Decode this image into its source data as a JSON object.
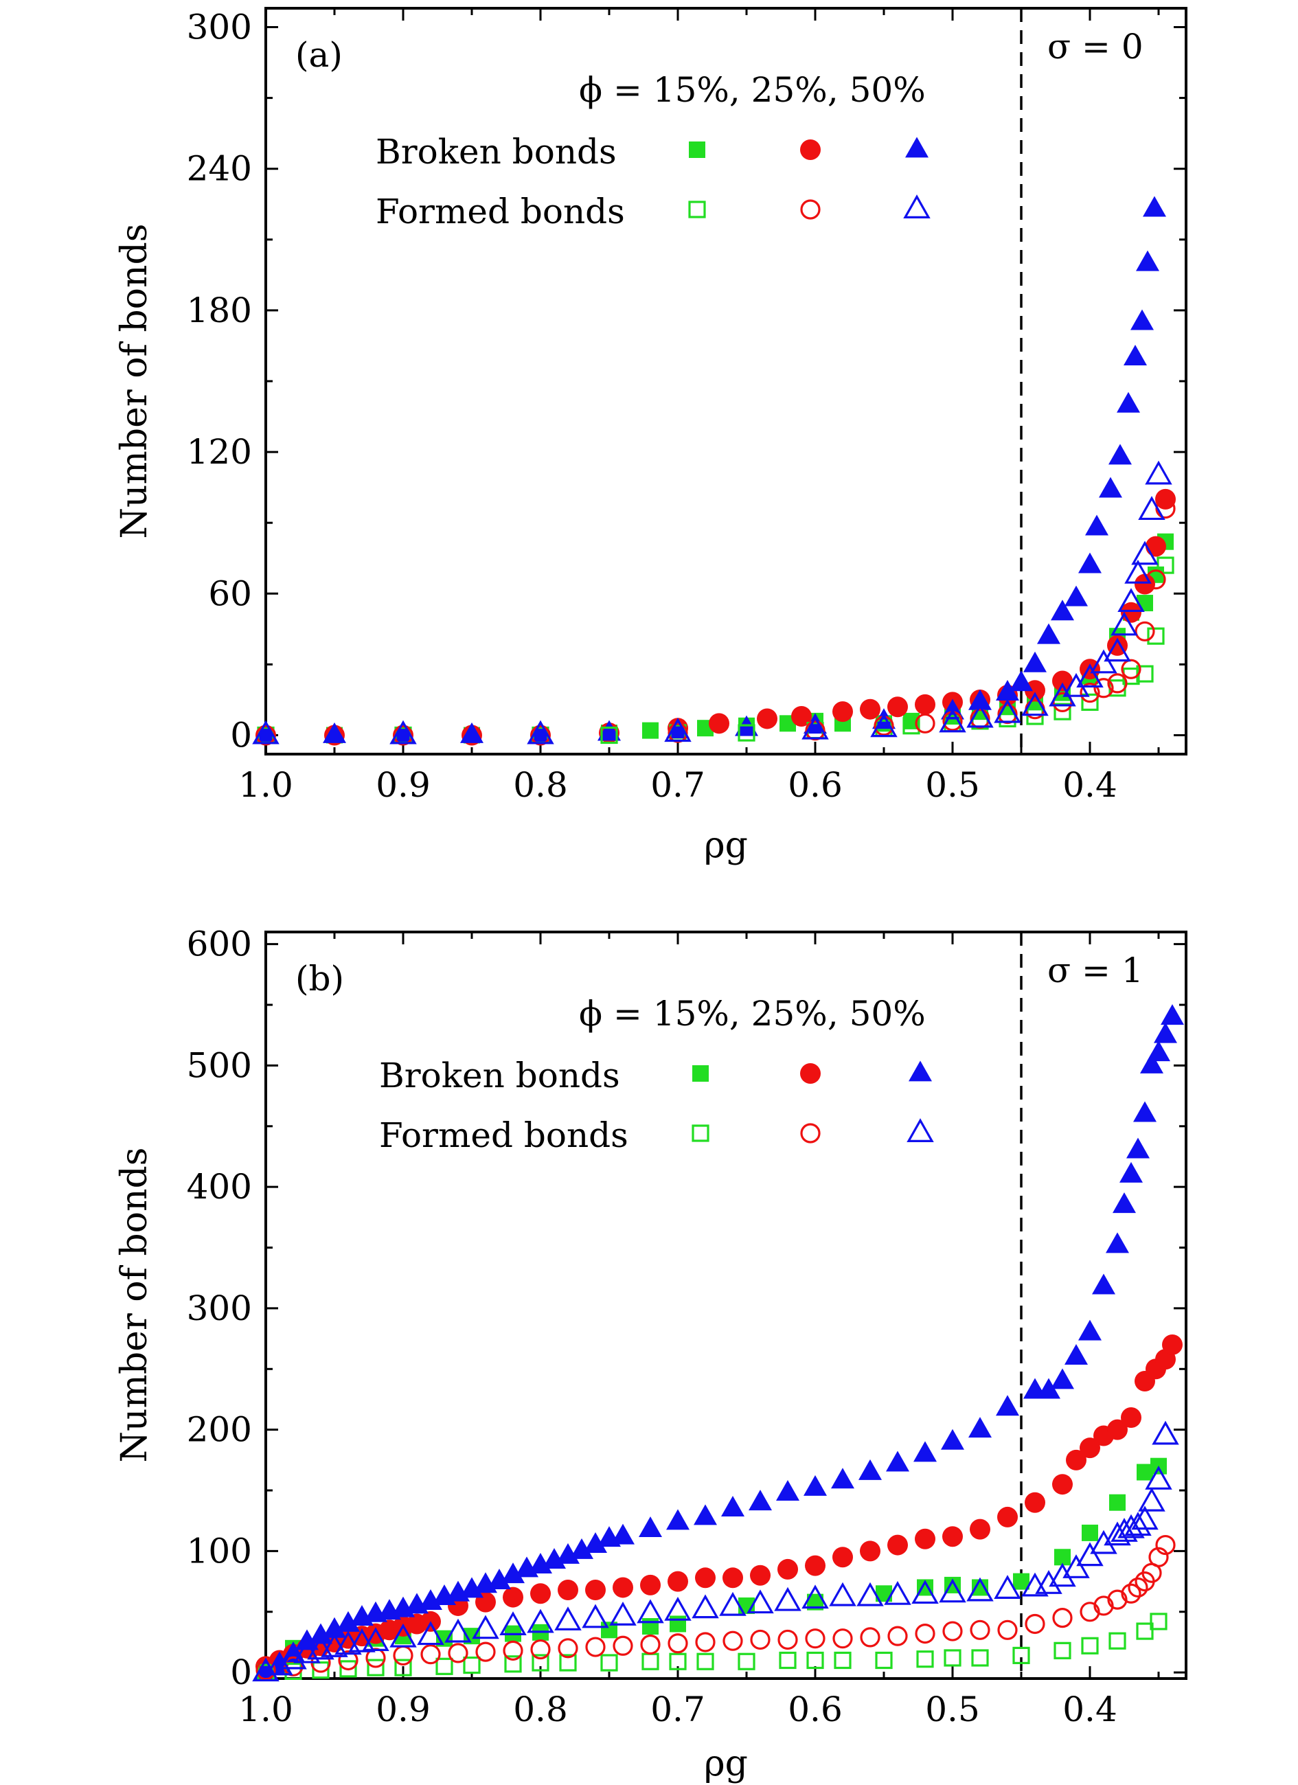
{
  "colors": {
    "phi15": "#22dd22",
    "phi25": "#ee1111",
    "phi50": "#1010ee",
    "axis": "#000000"
  },
  "chart_data": [
    {
      "type": "scatter",
      "panel_label": "(a)",
      "sigma_label": "σ = 0",
      "phi_label": "ϕ = 15%, 25%, 50%",
      "xlabel": "ρg",
      "ylabel": "Number of bonds",
      "xlim": [
        1.0,
        0.33
      ],
      "ylim": [
        -8,
        308
      ],
      "xticks": [
        1.0,
        0.9,
        0.8,
        0.7,
        0.6,
        0.5,
        0.4
      ],
      "xtick_labels": [
        "1.0",
        "0.9",
        "0.8",
        "0.7",
        "0.6",
        "0.5",
        "0.4"
      ],
      "yticks": [
        0,
        60,
        120,
        180,
        240,
        300
      ],
      "ytick_labels": [
        "0",
        "60",
        "120",
        "180",
        "240",
        "300"
      ],
      "vline": 0.45,
      "legend_rows": [
        "Broken bonds",
        "Formed bonds"
      ],
      "series": [
        {
          "phi": "15%",
          "kind": "Broken bonds",
          "marker": "square",
          "filled": true,
          "color_key": "phi15",
          "x": [
            1.0,
            0.95,
            0.9,
            0.85,
            0.8,
            0.75,
            0.72,
            0.7,
            0.68,
            0.65,
            0.62,
            0.6,
            0.58,
            0.55,
            0.53,
            0.5,
            0.48,
            0.46,
            0.44,
            0.42,
            0.4,
            0.38,
            0.37,
            0.36,
            0.352,
            0.345
          ],
          "y": [
            0,
            0,
            0,
            0,
            0,
            1,
            2,
            2,
            3,
            4,
            5,
            6,
            5,
            5,
            6,
            8,
            10,
            12,
            14,
            18,
            25,
            42,
            52,
            56,
            68,
            82
          ]
        },
        {
          "phi": "25%",
          "kind": "Broken bonds",
          "marker": "circle",
          "filled": true,
          "color_key": "phi25",
          "x": [
            1.0,
            0.95,
            0.9,
            0.85,
            0.8,
            0.75,
            0.7,
            0.67,
            0.635,
            0.61,
            0.58,
            0.56,
            0.54,
            0.52,
            0.5,
            0.48,
            0.46,
            0.44,
            0.42,
            0.4,
            0.38,
            0.37,
            0.36,
            0.352,
            0.345
          ],
          "y": [
            0,
            0,
            0,
            0,
            0,
            1,
            3,
            5,
            7,
            8,
            10,
            11,
            12,
            13,
            14,
            15,
            17,
            19,
            23,
            28,
            38,
            52,
            64,
            80,
            100
          ]
        },
        {
          "phi": "50%",
          "kind": "Broken bonds",
          "marker": "triangle",
          "filled": true,
          "color_key": "phi50",
          "x": [
            1.0,
            0.95,
            0.9,
            0.85,
            0.8,
            0.75,
            0.7,
            0.65,
            0.6,
            0.55,
            0.5,
            0.48,
            0.46,
            0.45,
            0.44,
            0.43,
            0.42,
            0.41,
            0.4,
            0.395,
            0.385,
            0.378,
            0.372,
            0.367,
            0.362,
            0.358,
            0.353
          ],
          "y": [
            0,
            0,
            0,
            0,
            0,
            1,
            2,
            3,
            4,
            6,
            10,
            14,
            18,
            22,
            30,
            42,
            52,
            58,
            72,
            88,
            104,
            118,
            140,
            160,
            175,
            200,
            223
          ]
        },
        {
          "phi": "15%",
          "kind": "Formed bonds",
          "marker": "square",
          "filled": false,
          "color_key": "phi15",
          "x": [
            1.0,
            0.9,
            0.8,
            0.75,
            0.7,
            0.65,
            0.6,
            0.55,
            0.53,
            0.5,
            0.48,
            0.46,
            0.44,
            0.42,
            0.4,
            0.38,
            0.37,
            0.36,
            0.352,
            0.345
          ],
          "y": [
            0,
            0,
            0,
            0,
            1,
            1,
            2,
            3,
            4,
            5,
            6,
            7,
            8,
            10,
            14,
            20,
            25,
            26,
            42,
            72
          ]
        },
        {
          "phi": "25%",
          "kind": "Formed bonds",
          "marker": "circle",
          "filled": false,
          "color_key": "phi25",
          "x": [
            1.0,
            0.9,
            0.8,
            0.7,
            0.6,
            0.55,
            0.52,
            0.5,
            0.48,
            0.46,
            0.44,
            0.42,
            0.4,
            0.39,
            0.38,
            0.37,
            0.36,
            0.352,
            0.345
          ],
          "y": [
            0,
            0,
            0,
            1,
            2,
            4,
            5,
            6,
            7,
            9,
            11,
            14,
            18,
            20,
            22,
            28,
            44,
            66,
            96
          ]
        },
        {
          "phi": "50%",
          "kind": "Formed bonds",
          "marker": "triangle",
          "filled": false,
          "color_key": "phi50",
          "x": [
            1.0,
            0.9,
            0.8,
            0.7,
            0.6,
            0.55,
            0.5,
            0.48,
            0.46,
            0.44,
            0.42,
            0.41,
            0.4,
            0.39,
            0.38,
            0.375,
            0.37,
            0.365,
            0.36,
            0.355,
            0.35
          ],
          "y": [
            0,
            0,
            0,
            1,
            2,
            3,
            5,
            7,
            9,
            12,
            16,
            20,
            24,
            30,
            35,
            46,
            56,
            68,
            76,
            95,
            110
          ]
        }
      ]
    },
    {
      "type": "scatter",
      "panel_label": "(b)",
      "sigma_label": "σ = 1",
      "phi_label": "ϕ = 15%, 25%, 50%",
      "xlabel": "ρg",
      "ylabel": "Number of bonds",
      "xlim": [
        1.0,
        0.33
      ],
      "ylim": [
        -5,
        610
      ],
      "xticks": [
        1.0,
        0.9,
        0.8,
        0.7,
        0.6,
        0.5,
        0.4
      ],
      "xtick_labels": [
        "1.0",
        "0.9",
        "0.8",
        "0.7",
        "0.6",
        "0.5",
        "0.4"
      ],
      "yticks": [
        0,
        100,
        200,
        300,
        400,
        500,
        600
      ],
      "ytick_labels": [
        "0",
        "100",
        "200",
        "300",
        "400",
        "500",
        "600"
      ],
      "vline": 0.45,
      "legend_rows": [
        "Broken bonds",
        "Formed bonds"
      ],
      "series": [
        {
          "phi": "15%",
          "kind": "Broken bonds",
          "marker": "square",
          "filled": true,
          "color_key": "phi15",
          "x": [
            0.98,
            0.95,
            0.92,
            0.9,
            0.87,
            0.85,
            0.82,
            0.8,
            0.75,
            0.72,
            0.7,
            0.65,
            0.6,
            0.55,
            0.52,
            0.5,
            0.48,
            0.45,
            0.42,
            0.4,
            0.38,
            0.36,
            0.35
          ],
          "y": [
            20,
            25,
            28,
            30,
            28,
            30,
            32,
            33,
            35,
            38,
            40,
            55,
            58,
            65,
            70,
            72,
            70,
            75,
            95,
            115,
            140,
            165,
            170
          ]
        },
        {
          "phi": "25%",
          "kind": "Broken bonds",
          "marker": "circle",
          "filled": true,
          "color_key": "phi25",
          "x": [
            1.0,
            0.99,
            0.98,
            0.97,
            0.96,
            0.95,
            0.94,
            0.93,
            0.92,
            0.91,
            0.9,
            0.89,
            0.88,
            0.86,
            0.84,
            0.82,
            0.8,
            0.78,
            0.76,
            0.74,
            0.72,
            0.7,
            0.68,
            0.66,
            0.64,
            0.62,
            0.6,
            0.58,
            0.56,
            0.54,
            0.52,
            0.5,
            0.48,
            0.46,
            0.44,
            0.42,
            0.41,
            0.4,
            0.39,
            0.38,
            0.37,
            0.36,
            0.352,
            0.345,
            0.34
          ],
          "y": [
            5,
            10,
            15,
            20,
            22,
            25,
            28,
            30,
            32,
            35,
            38,
            40,
            42,
            55,
            58,
            62,
            65,
            68,
            68,
            70,
            72,
            75,
            78,
            78,
            80,
            85,
            88,
            95,
            100,
            105,
            110,
            112,
            118,
            128,
            140,
            155,
            175,
            185,
            195,
            200,
            210,
            240,
            250,
            258,
            270
          ]
        },
        {
          "phi": "50%",
          "kind": "Broken bonds",
          "marker": "triangle",
          "filled": true,
          "color_key": "phi50",
          "x": [
            1.0,
            0.99,
            0.98,
            0.97,
            0.96,
            0.95,
            0.94,
            0.93,
            0.92,
            0.91,
            0.9,
            0.89,
            0.88,
            0.87,
            0.86,
            0.85,
            0.84,
            0.83,
            0.82,
            0.81,
            0.8,
            0.79,
            0.78,
            0.77,
            0.76,
            0.75,
            0.74,
            0.72,
            0.7,
            0.68,
            0.66,
            0.64,
            0.62,
            0.6,
            0.58,
            0.56,
            0.54,
            0.52,
            0.5,
            0.48,
            0.46,
            0.44,
            0.43,
            0.42,
            0.41,
            0.4,
            0.39,
            0.38,
            0.375,
            0.37,
            0.365,
            0.36,
            0.355,
            0.35,
            0.345,
            0.34
          ],
          "y": [
            0,
            5,
            15,
            25,
            30,
            35,
            40,
            45,
            48,
            50,
            52,
            55,
            58,
            62,
            65,
            68,
            72,
            75,
            80,
            85,
            88,
            92,
            96,
            100,
            105,
            110,
            112,
            118,
            124,
            128,
            135,
            140,
            148,
            152,
            158,
            165,
            172,
            180,
            190,
            200,
            218,
            232,
            232,
            240,
            260,
            280,
            318,
            352,
            385,
            410,
            430,
            460,
            500,
            510,
            525,
            540
          ]
        },
        {
          "phi": "15%",
          "kind": "Formed bonds",
          "marker": "square",
          "filled": false,
          "color_key": "phi15",
          "x": [
            1.0,
            0.98,
            0.96,
            0.94,
            0.92,
            0.9,
            0.87,
            0.85,
            0.82,
            0.8,
            0.78,
            0.75,
            0.72,
            0.7,
            0.68,
            0.65,
            0.62,
            0.6,
            0.58,
            0.55,
            0.52,
            0.5,
            0.48,
            0.45,
            0.42,
            0.4,
            0.38,
            0.36,
            0.35
          ],
          "y": [
            0,
            1,
            2,
            3,
            4,
            4,
            5,
            6,
            7,
            8,
            8,
            8,
            9,
            9,
            9,
            9,
            10,
            10,
            10,
            10,
            11,
            12,
            12,
            14,
            18,
            22,
            26,
            34,
            42
          ]
        },
        {
          "phi": "25%",
          "kind": "Formed bonds",
          "marker": "circle",
          "filled": false,
          "color_key": "phi25",
          "x": [
            1.0,
            0.98,
            0.96,
            0.94,
            0.92,
            0.9,
            0.88,
            0.86,
            0.84,
            0.82,
            0.8,
            0.78,
            0.76,
            0.74,
            0.72,
            0.7,
            0.68,
            0.66,
            0.64,
            0.62,
            0.6,
            0.58,
            0.56,
            0.54,
            0.52,
            0.5,
            0.48,
            0.46,
            0.44,
            0.42,
            0.4,
            0.39,
            0.38,
            0.37,
            0.365,
            0.36,
            0.355,
            0.35,
            0.345
          ],
          "y": [
            2,
            5,
            8,
            10,
            12,
            14,
            15,
            16,
            17,
            18,
            19,
            20,
            21,
            22,
            23,
            24,
            25,
            26,
            27,
            27,
            28,
            28,
            29,
            30,
            32,
            34,
            35,
            35,
            40,
            45,
            50,
            55,
            60,
            65,
            70,
            75,
            82,
            95,
            105
          ]
        },
        {
          "phi": "50%",
          "kind": "Formed bonds",
          "marker": "triangle",
          "filled": false,
          "color_key": "phi50",
          "x": [
            1.0,
            0.99,
            0.98,
            0.97,
            0.96,
            0.95,
            0.94,
            0.93,
            0.92,
            0.9,
            0.88,
            0.86,
            0.84,
            0.82,
            0.8,
            0.78,
            0.76,
            0.74,
            0.72,
            0.7,
            0.68,
            0.66,
            0.64,
            0.62,
            0.6,
            0.58,
            0.56,
            0.54,
            0.52,
            0.5,
            0.48,
            0.46,
            0.44,
            0.43,
            0.42,
            0.41,
            0.4,
            0.39,
            0.38,
            0.375,
            0.37,
            0.365,
            0.36,
            0.355,
            0.35,
            0.345
          ],
          "y": [
            0,
            5,
            10,
            15,
            18,
            20,
            22,
            24,
            25,
            28,
            30,
            32,
            35,
            38,
            40,
            42,
            44,
            46,
            48,
            50,
            52,
            54,
            56,
            58,
            60,
            62,
            62,
            63,
            64,
            65,
            66,
            68,
            70,
            72,
            78,
            85,
            95,
            105,
            112,
            115,
            118,
            120,
            125,
            140,
            158,
            195
          ]
        }
      ]
    }
  ]
}
